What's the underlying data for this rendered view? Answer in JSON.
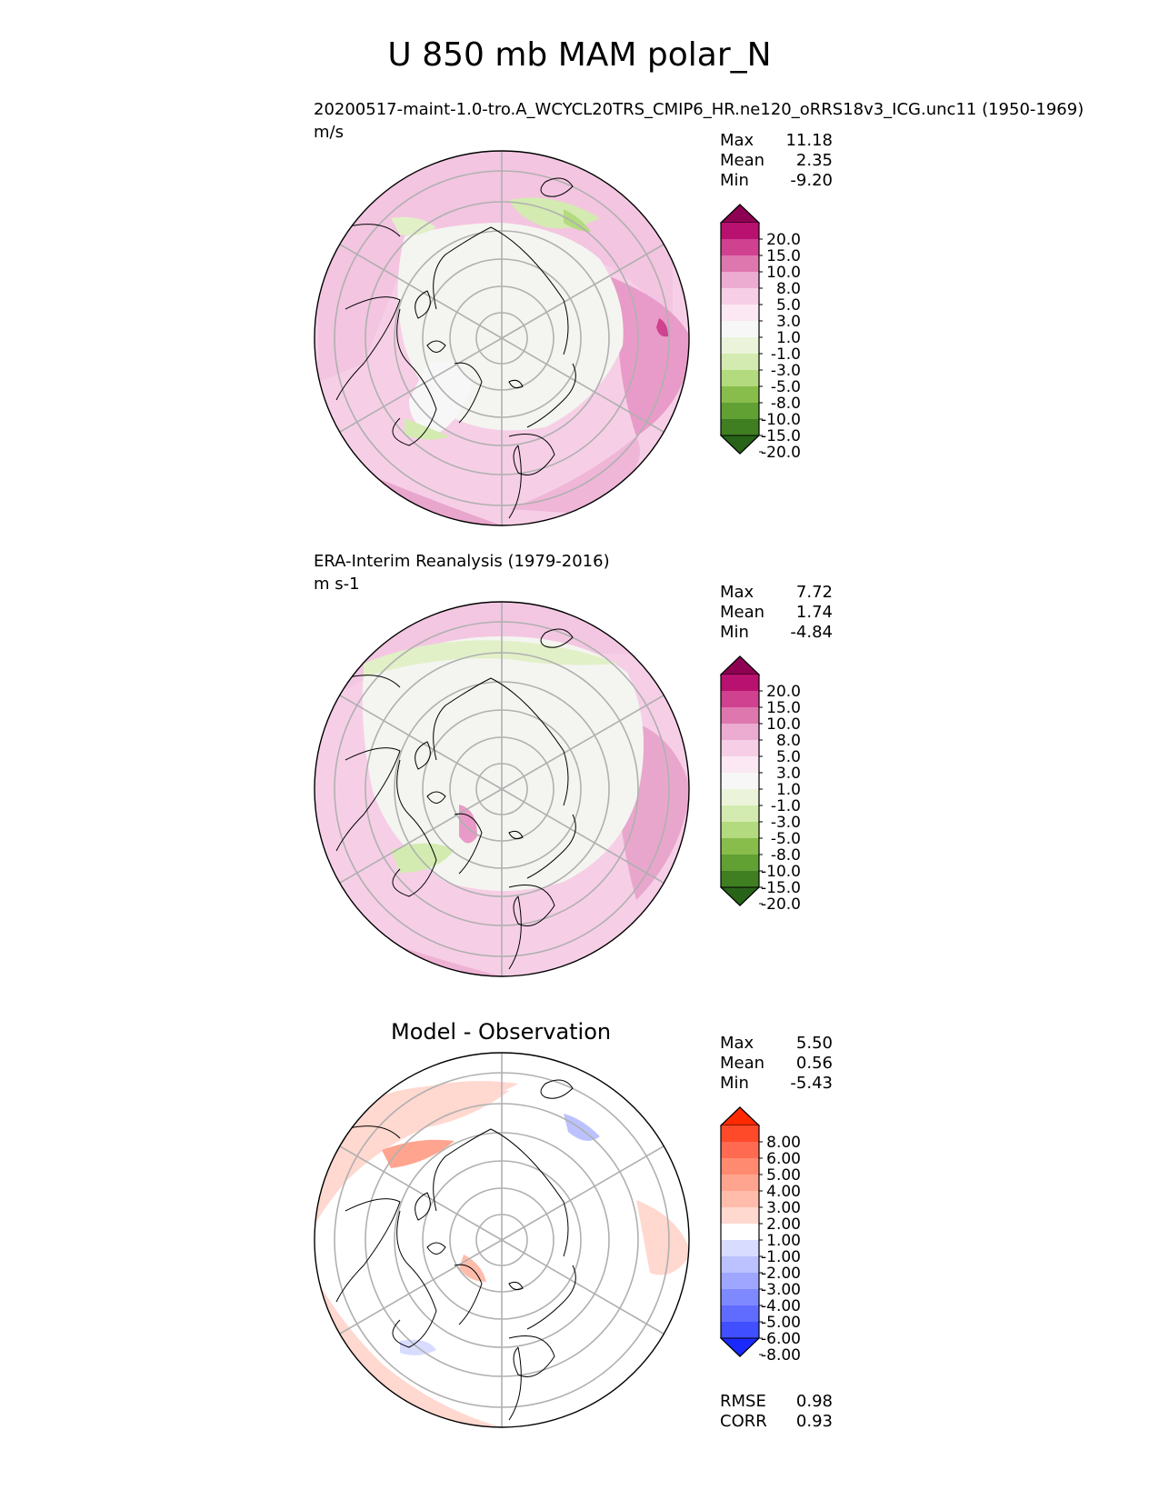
{
  "figure": {
    "title": "U 850 mb MAM polar_N"
  },
  "panels": [
    {
      "id": "test",
      "title": "20200517-maint-1.0-tro.A_WCYCL20TRS_CMIP6_HR.ne120_oRRS18v3_ICG.unc11 (1950-1969)",
      "units": "m/s",
      "stats": [
        {
          "label": "Max",
          "value": "11.18"
        },
        {
          "label": "Mean",
          "value": "2.35"
        },
        {
          "label": "Min",
          "value": "-9.20"
        }
      ]
    },
    {
      "id": "reference",
      "title": "ERA-Interim Reanalysis (1979-2016)",
      "units": "m s-1",
      "stats": [
        {
          "label": "Max",
          "value": "7.72"
        },
        {
          "label": "Mean",
          "value": "1.74"
        },
        {
          "label": "Min",
          "value": "-4.84"
        }
      ]
    },
    {
      "id": "difference",
      "title": "Model - Observation",
      "units": "",
      "stats": [
        {
          "label": "Max",
          "value": "5.50"
        },
        {
          "label": "Mean",
          "value": "0.56"
        },
        {
          "label": "Min",
          "value": "-5.43"
        }
      ],
      "metrics": [
        {
          "label": "RMSE",
          "value": "0.98"
        },
        {
          "label": "CORR",
          "value": "0.93"
        }
      ]
    }
  ],
  "chart_data": [
    {
      "type": "heatmap",
      "projection": "north polar stereographic",
      "title": "20200517-maint-1.0-tro.A_WCYCL20TRS_CMIP6_HR.ne120_oRRS18v3_ICG.unc11 (1950-1969)",
      "units": "m/s",
      "stats": {
        "max": 11.18,
        "mean": 2.35,
        "min": -9.2
      },
      "colorbar": {
        "levels": [
          -20,
          -15,
          -10,
          -8,
          -5,
          -3,
          -1,
          1,
          3,
          5,
          8,
          10,
          15,
          20
        ],
        "tick_labels": [
          "20.0",
          "15.0",
          "10.0",
          "8.0",
          "5.0",
          "3.0",
          "1.0",
          "-1.0",
          "-3.0",
          "-5.0",
          "-8.0",
          "-10.0",
          "-15.0",
          "-20.0"
        ],
        "colors": [
          "#8e0152",
          "#b8116f",
          "#d0418f",
          "#de77ae",
          "#ecacd2",
          "#f6cfe6",
          "#fbe8f2",
          "#f7f7f7",
          "#ebf4da",
          "#d3ebb0",
          "#b3da7e",
          "#88bd4b",
          "#61a033",
          "#3f7f22",
          "#276419"
        ],
        "extend": "both"
      }
    },
    {
      "type": "heatmap",
      "projection": "north polar stereographic",
      "title": "ERA-Interim Reanalysis (1979-2016)",
      "units": "m s-1",
      "stats": {
        "max": 7.72,
        "mean": 1.74,
        "min": -4.84
      },
      "colorbar": {
        "levels": [
          -20,
          -15,
          -10,
          -8,
          -5,
          -3,
          -1,
          1,
          3,
          5,
          8,
          10,
          15,
          20
        ],
        "tick_labels": [
          "20.0",
          "15.0",
          "10.0",
          "8.0",
          "5.0",
          "3.0",
          "1.0",
          "-1.0",
          "-3.0",
          "-5.0",
          "-8.0",
          "-10.0",
          "-15.0",
          "-20.0"
        ],
        "colors": [
          "#8e0152",
          "#b8116f",
          "#d0418f",
          "#de77ae",
          "#ecacd2",
          "#f6cfe6",
          "#fbe8f2",
          "#f7f7f7",
          "#ebf4da",
          "#d3ebb0",
          "#b3da7e",
          "#88bd4b",
          "#61a033",
          "#3f7f22",
          "#276419"
        ],
        "extend": "both"
      }
    },
    {
      "type": "heatmap",
      "projection": "north polar stereographic",
      "title": "Model - Observation",
      "stats": {
        "max": 5.5,
        "mean": 0.56,
        "min": -5.43
      },
      "metrics": {
        "rmse": 0.98,
        "corr": 0.93
      },
      "colorbar": {
        "levels": [
          -8,
          -6,
          -5,
          -4,
          -3,
          -2,
          -1,
          1,
          2,
          3,
          4,
          5,
          6,
          8
        ],
        "tick_labels": [
          "8.00",
          "6.00",
          "5.00",
          "4.00",
          "3.00",
          "2.00",
          "1.00",
          "-1.00",
          "-2.00",
          "-3.00",
          "-4.00",
          "-5.00",
          "-6.00",
          "-8.00"
        ],
        "colors": [
          "#ff2a00",
          "#ff4a2a",
          "#ff6a50",
          "#ff8a70",
          "#ffa48e",
          "#ffbcab",
          "#ffd8cf",
          "#ffffff",
          "#d8dcff",
          "#bcc2ff",
          "#9ea6ff",
          "#7f89ff",
          "#606cff",
          "#404fff",
          "#1a2aff"
        ],
        "extend": "both"
      }
    }
  ]
}
